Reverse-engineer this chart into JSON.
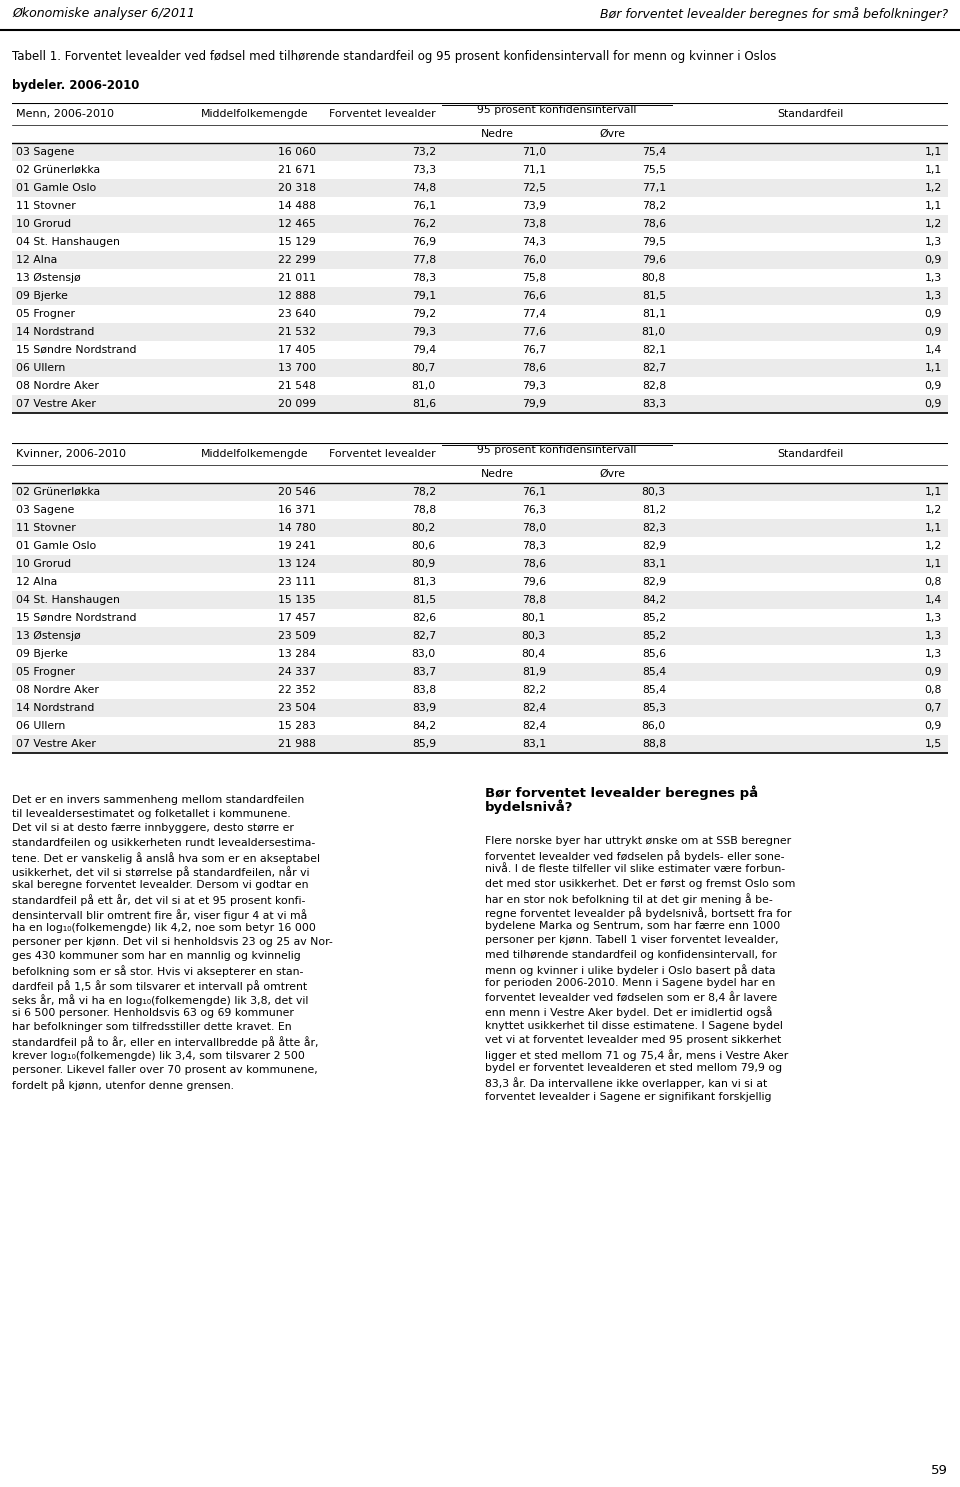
{
  "header_title": "Økonomiske analyser 6/2011",
  "header_right": "Bør forventet levealder beregnes for små befolkninger?",
  "table_title_bold": "Tabell 1. Forventet levealder ved fødsel med tilhørende standardfeil og 95 prosent konfidensintervall for menn og kvinner i Oslos",
  "table_title_bold2": "bydeler. 2006-2010",
  "men_section_label": "Menn, 2006-2010",
  "women_section_label": "Kvinner, 2006-2010",
  "men_rows": [
    [
      "03 Sagene",
      "16 060",
      "73,2",
      "71,0",
      "75,4",
      "1,1"
    ],
    [
      "02 Grünerløkka",
      "21 671",
      "73,3",
      "71,1",
      "75,5",
      "1,1"
    ],
    [
      "01 Gamle Oslo",
      "20 318",
      "74,8",
      "72,5",
      "77,1",
      "1,2"
    ],
    [
      "11 Stovner",
      "14 488",
      "76,1",
      "73,9",
      "78,2",
      "1,1"
    ],
    [
      "10 Grorud",
      "12 465",
      "76,2",
      "73,8",
      "78,6",
      "1,2"
    ],
    [
      "04 St. Hanshaugen",
      "15 129",
      "76,9",
      "74,3",
      "79,5",
      "1,3"
    ],
    [
      "12 Alna",
      "22 299",
      "77,8",
      "76,0",
      "79,6",
      "0,9"
    ],
    [
      "13 Østensjø",
      "21 011",
      "78,3",
      "75,8",
      "80,8",
      "1,3"
    ],
    [
      "09 Bjerke",
      "12 888",
      "79,1",
      "76,6",
      "81,5",
      "1,3"
    ],
    [
      "05 Frogner",
      "23 640",
      "79,2",
      "77,4",
      "81,1",
      "0,9"
    ],
    [
      "14 Nordstrand",
      "21 532",
      "79,3",
      "77,6",
      "81,0",
      "0,9"
    ],
    [
      "15 Søndre Nordstrand",
      "17 405",
      "79,4",
      "76,7",
      "82,1",
      "1,4"
    ],
    [
      "06 Ullern",
      "13 700",
      "80,7",
      "78,6",
      "82,7",
      "1,1"
    ],
    [
      "08 Nordre Aker",
      "21 548",
      "81,0",
      "79,3",
      "82,8",
      "0,9"
    ],
    [
      "07 Vestre Aker",
      "20 099",
      "81,6",
      "79,9",
      "83,3",
      "0,9"
    ]
  ],
  "women_rows": [
    [
      "02 Grünerløkka",
      "20 546",
      "78,2",
      "76,1",
      "80,3",
      "1,1"
    ],
    [
      "03 Sagene",
      "16 371",
      "78,8",
      "76,3",
      "81,2",
      "1,2"
    ],
    [
      "11 Stovner",
      "14 780",
      "80,2",
      "78,0",
      "82,3",
      "1,1"
    ],
    [
      "01 Gamle Oslo",
      "19 241",
      "80,6",
      "78,3",
      "82,9",
      "1,2"
    ],
    [
      "10 Grorud",
      "13 124",
      "80,9",
      "78,6",
      "83,1",
      "1,1"
    ],
    [
      "12 Alna",
      "23 111",
      "81,3",
      "79,6",
      "82,9",
      "0,8"
    ],
    [
      "04 St. Hanshaugen",
      "15 135",
      "81,5",
      "78,8",
      "84,2",
      "1,4"
    ],
    [
      "15 Søndre Nordstrand",
      "17 457",
      "82,6",
      "80,1",
      "85,2",
      "1,3"
    ],
    [
      "13 Østensjø",
      "23 509",
      "82,7",
      "80,3",
      "85,2",
      "1,3"
    ],
    [
      "09 Bjerke",
      "13 284",
      "83,0",
      "80,4",
      "85,6",
      "1,3"
    ],
    [
      "05 Frogner",
      "24 337",
      "83,7",
      "81,9",
      "85,4",
      "0,9"
    ],
    [
      "08 Nordre Aker",
      "22 352",
      "83,8",
      "82,2",
      "85,4",
      "0,8"
    ],
    [
      "14 Nordstrand",
      "23 504",
      "83,9",
      "82,4",
      "85,3",
      "0,7"
    ],
    [
      "06 Ullern",
      "15 283",
      "84,2",
      "82,4",
      "86,0",
      "0,9"
    ],
    [
      "07 Vestre Aker",
      "21 988",
      "85,9",
      "83,1",
      "88,8",
      "1,5"
    ]
  ],
  "body_text_left_lines": [
    "Det er en invers sammenheng mellom standardfeilen",
    "til levealdersestimatet og folketallet i kommunene.",
    "Det vil si at desto færre innbyggere, desto større er",
    "standardfeilen og usikkerheten rundt levealdersestima-",
    "tene. Det er vanskelig å anslå hva som er en akseptabel",
    "usikkerhet, det vil si størrelse på standardfeilen, når vi",
    "skal beregne forventet levealder. Dersom vi godtar en",
    "standardfeil på ett år, det vil si at et 95 prosent konfi-",
    "densintervall blir omtrent fire år, viser figur 4 at vi må",
    "ha en log₁₀(folkemengde) lik 4,2, noe som betyr 16 000",
    "personer per kjønn. Det vil si henholdsvis 23 og 25 av Nor-",
    "ges 430 kommuner som har en mannlig og kvinnelig",
    "befolkning som er så stor. Hvis vi aksepterer en stan-",
    "dardfeil på 1,5 år som tilsvarer et intervall på omtrent",
    "seks år, må vi ha en log₁₀(folkemengde) lik 3,8, det vil",
    "si 6 500 personer. Henholdsvis 63 og 69 kommuner",
    "har befolkninger som tilfredsstiller dette kravet. En",
    "standardfeil på to år, eller en intervallbredde på åtte år,",
    "krever log₁₀(folkemengde) lik 3,4, som tilsvarer 2 500",
    "personer. Likevel faller over 70 prosent av kommunene,",
    "fordelt på kjønn, utenfor denne grensen."
  ],
  "body_text_right_title1": "Bør forventet levealder beregnes på",
  "body_text_right_title2": "bydelsnivå?",
  "body_text_right_lines": [
    "Flere norske byer har uttrykt ønske om at SSB beregner",
    "forventet levealder ved fødselen på bydels- eller sone-",
    "nivå. I de fleste tilfeller vil slike estimater være forbun-",
    "det med stor usikkerhet. Det er først og fremst Oslo som",
    "har en stor nok befolkning til at det gir mening å be-",
    "regne forventet levealder på bydelsnivå, bortsett fra for",
    "bydelene Marka og Sentrum, som har færre enn 1000",
    "personer per kjønn. Tabell 1 viser forventet levealder,",
    "med tilhørende standardfeil og konfidensintervall, for",
    "menn og kvinner i ulike bydeler i Oslo basert på data",
    "for perioden 2006-2010. Menn i Sagene bydel har en",
    "forventet levealder ved fødselen som er 8,4 år lavere",
    "enn menn i Vestre Aker bydel. Det er imidlertid også",
    "knyttet usikkerhet til disse estimatene. I Sagene bydel",
    "vet vi at forventet levealder med 95 prosent sikkerhet",
    "ligger et sted mellom 71 og 75,4 år, mens i Vestre Aker",
    "bydel er forventet levealderen et sted mellom 79,9 og",
    "83,3 år. Da intervallene ikke overlapper, kan vi si at",
    "forventet levealder i Sagene er signifikant forskjellig"
  ],
  "page_number": "59",
  "row_bg_odd": "#ebebeb",
  "row_bg_even": "#ffffff"
}
